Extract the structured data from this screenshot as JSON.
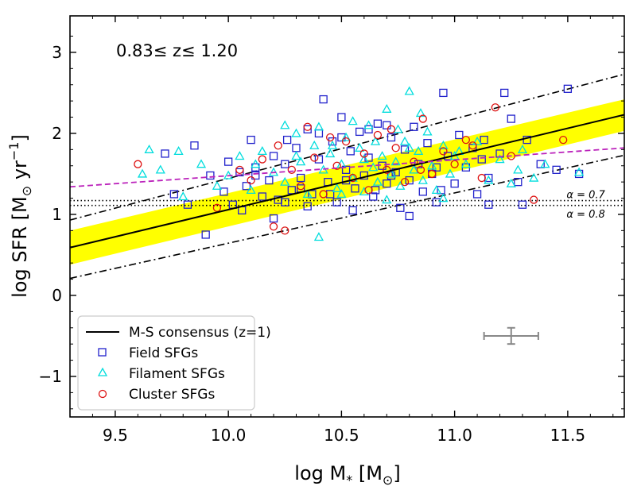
{
  "chart_data": {
    "type": "scatter",
    "title": "",
    "xlabel": "log M",
    "xlabel_sub": "*",
    "xlabel_unit": " [M",
    "xlabel_sun": "⊙",
    "xlabel_close": "]",
    "ylabel": "log SFR [M",
    "ylabel_sun": "⊙",
    "ylabel_unit": " yr",
    "ylabel_exp": "−1",
    "ylabel_close": "]",
    "xlim": [
      9.3,
      11.75
    ],
    "ylim": [
      -1.5,
      3.45
    ],
    "x_ticks": [
      9.5,
      10.0,
      10.5,
      11.0,
      11.5
    ],
    "x_tick_labels": [
      "9.5",
      "10.0",
      "10.5",
      "11.0",
      "11.5"
    ],
    "y_ticks": [
      -1,
      0,
      1,
      2,
      3
    ],
    "y_tick_labels": [
      "−1",
      "0",
      "1",
      "2",
      "3"
    ],
    "redshift_label": "0.83≤  z≤  1.20",
    "annotations": [
      {
        "text": "α = 0.7",
        "x": 11.58,
        "y": 1.24
      },
      {
        "text": "α = 0.8",
        "x": 11.58,
        "y": 1.0
      }
    ],
    "lines": {
      "ms_consensus": {
        "label": "M-S consensus (z=1)",
        "x": [
          9.3,
          11.75
        ],
        "y": [
          0.59,
          2.23
        ],
        "color": "#000000"
      },
      "ms_upper": {
        "x": [
          9.3,
          11.75
        ],
        "y": [
          0.93,
          2.73
        ],
        "color": "#000000"
      },
      "ms_lower": {
        "x": [
          9.3,
          11.75
        ],
        "y": [
          0.21,
          1.73
        ],
        "color": "#000000"
      },
      "band": {
        "x": [
          9.3,
          11.75
        ],
        "y_low": [
          0.38,
          2.03
        ],
        "y_high": [
          0.8,
          2.42
        ],
        "color": "#ffff00"
      },
      "fit_dashed": {
        "x": [
          9.3,
          11.75
        ],
        "y": [
          1.34,
          1.82
        ],
        "color": "#bb22bb"
      },
      "alpha_07": {
        "y": 1.17,
        "color": "#000000"
      },
      "alpha_08": {
        "y": 1.11,
        "color": "#000000"
      }
    },
    "error_bar": {
      "x": 11.25,
      "y": -0.5,
      "xerr": 0.12,
      "yerr": 0.1,
      "color": "#888888"
    },
    "legend": [
      {
        "key": "ms",
        "label": "M-S consensus (z=1)"
      },
      {
        "key": "field",
        "label": "Field SFGs"
      },
      {
        "key": "filament",
        "label": "Filament SFGs"
      },
      {
        "key": "cluster",
        "label": "Cluster SFGs"
      }
    ],
    "series": [
      {
        "name": "Field SFGs",
        "marker": "square",
        "color": "#2222cc",
        "points": [
          [
            9.72,
            1.75
          ],
          [
            9.76,
            1.25
          ],
          [
            9.85,
            1.85
          ],
          [
            9.92,
            1.48
          ],
          [
            9.98,
            1.28
          ],
          [
            10.0,
            1.65
          ],
          [
            10.02,
            1.12
          ],
          [
            10.05,
            1.52
          ],
          [
            10.08,
            1.35
          ],
          [
            10.12,
            1.58
          ],
          [
            10.15,
            1.22
          ],
          [
            10.18,
            1.42
          ],
          [
            10.2,
            1.72
          ],
          [
            10.22,
            1.18
          ],
          [
            10.25,
            1.62
          ],
          [
            10.28,
            1.3
          ],
          [
            10.3,
            1.82
          ],
          [
            10.32,
            1.45
          ],
          [
            10.35,
            2.05
          ],
          [
            10.37,
            1.25
          ],
          [
            10.4,
            1.68
          ],
          [
            10.42,
            2.42
          ],
          [
            10.44,
            1.4
          ],
          [
            10.46,
            1.9
          ],
          [
            10.48,
            1.15
          ],
          [
            10.5,
            2.2
          ],
          [
            10.52,
            1.55
          ],
          [
            10.54,
            1.78
          ],
          [
            10.56,
            1.32
          ],
          [
            10.58,
            2.02
          ],
          [
            10.6,
            1.48
          ],
          [
            10.62,
            1.7
          ],
          [
            10.64,
            1.22
          ],
          [
            10.66,
            2.12
          ],
          [
            10.68,
            1.6
          ],
          [
            10.7,
            1.38
          ],
          [
            10.72,
            1.95
          ],
          [
            10.74,
            1.52
          ],
          [
            10.76,
            1.08
          ],
          [
            10.78,
            1.8
          ],
          [
            10.8,
            1.42
          ],
          [
            10.82,
            2.08
          ],
          [
            10.84,
            1.62
          ],
          [
            10.86,
            1.28
          ],
          [
            10.88,
            1.88
          ],
          [
            10.9,
            1.5
          ],
          [
            10.92,
            1.15
          ],
          [
            10.95,
            2.5
          ],
          [
            10.97,
            1.72
          ],
          [
            11.0,
            1.38
          ],
          [
            11.02,
            1.98
          ],
          [
            11.05,
            1.58
          ],
          [
            11.08,
            1.82
          ],
          [
            11.1,
            1.25
          ],
          [
            11.13,
            1.92
          ],
          [
            11.15,
            1.45
          ],
          [
            11.2,
            1.75
          ],
          [
            11.22,
            2.5
          ],
          [
            11.25,
            2.18
          ],
          [
            11.28,
            1.4
          ],
          [
            11.32,
            1.92
          ],
          [
            11.38,
            1.62
          ],
          [
            11.45,
            1.55
          ],
          [
            11.5,
            2.55
          ],
          [
            11.55,
            1.5
          ],
          [
            9.82,
            1.12
          ],
          [
            9.9,
            0.75
          ],
          [
            10.06,
            1.05
          ],
          [
            10.2,
            0.95
          ],
          [
            10.35,
            1.1
          ],
          [
            10.55,
            1.05
          ],
          [
            10.8,
            0.98
          ],
          [
            11.15,
            1.12
          ],
          [
            11.3,
            1.12
          ],
          [
            10.1,
            1.92
          ],
          [
            10.26,
            1.92
          ],
          [
            10.4,
            2.0
          ],
          [
            10.5,
            1.95
          ],
          [
            10.62,
            2.05
          ],
          [
            10.7,
            2.1
          ],
          [
            10.94,
            1.3
          ],
          [
            10.12,
            1.48
          ],
          [
            10.32,
            1.32
          ],
          [
            10.52,
            1.42
          ],
          [
            10.72,
            1.48
          ],
          [
            10.92,
            1.58
          ],
          [
            11.12,
            1.68
          ],
          [
            10.25,
            1.15
          ],
          [
            10.45,
            1.25
          ],
          [
            10.65,
            1.3
          ]
        ]
      },
      {
        "name": "Filament SFGs",
        "marker": "triangle",
        "color": "#00dddd",
        "points": [
          [
            9.62,
            1.5
          ],
          [
            9.65,
            1.8
          ],
          [
            9.7,
            1.55
          ],
          [
            9.78,
            1.78
          ],
          [
            9.8,
            1.22
          ],
          [
            9.88,
            1.62
          ],
          [
            9.95,
            1.35
          ],
          [
            10.0,
            1.48
          ],
          [
            10.05,
            1.72
          ],
          [
            10.1,
            1.3
          ],
          [
            10.15,
            1.78
          ],
          [
            10.2,
            1.52
          ],
          [
            10.25,
            1.4
          ],
          [
            10.3,
            2.0
          ],
          [
            10.32,
            1.65
          ],
          [
            10.35,
            1.25
          ],
          [
            10.38,
            1.85
          ],
          [
            10.4,
            0.72
          ],
          [
            10.42,
            1.55
          ],
          [
            10.45,
            1.75
          ],
          [
            10.48,
            1.32
          ],
          [
            10.5,
            1.62
          ],
          [
            10.52,
            1.95
          ],
          [
            10.55,
            1.45
          ],
          [
            10.58,
            1.82
          ],
          [
            10.6,
            1.28
          ],
          [
            10.62,
            2.1
          ],
          [
            10.64,
            1.58
          ],
          [
            10.66,
            1.4
          ],
          [
            10.68,
            1.72
          ],
          [
            10.7,
            2.3
          ],
          [
            10.72,
            1.5
          ],
          [
            10.74,
            1.65
          ],
          [
            10.76,
            1.35
          ],
          [
            10.78,
            1.9
          ],
          [
            10.8,
            2.52
          ],
          [
            10.82,
            1.55
          ],
          [
            10.84,
            1.78
          ],
          [
            10.86,
            1.42
          ],
          [
            10.88,
            2.02
          ],
          [
            10.9,
            1.6
          ],
          [
            10.92,
            1.3
          ],
          [
            10.95,
            1.85
          ],
          [
            10.98,
            1.5
          ],
          [
            11.0,
            1.72
          ],
          [
            11.05,
            1.62
          ],
          [
            11.1,
            1.9
          ],
          [
            11.15,
            1.42
          ],
          [
            11.2,
            1.68
          ],
          [
            11.25,
            1.38
          ],
          [
            11.28,
            1.55
          ],
          [
            11.3,
            1.8
          ],
          [
            11.35,
            1.45
          ],
          [
            11.4,
            1.62
          ],
          [
            11.55,
            1.52
          ],
          [
            10.4,
            2.08
          ],
          [
            10.55,
            2.15
          ],
          [
            10.65,
            1.9
          ],
          [
            10.75,
            2.05
          ],
          [
            10.85,
            2.25
          ],
          [
            10.25,
            2.1
          ],
          [
            10.5,
            1.25
          ],
          [
            10.7,
            1.18
          ],
          [
            10.95,
            1.2
          ],
          [
            10.12,
            1.62
          ],
          [
            10.3,
            1.72
          ],
          [
            10.46,
            1.85
          ],
          [
            10.6,
            1.68
          ],
          [
            10.8,
            1.82
          ],
          [
            11.02,
            1.78
          ]
        ]
      },
      {
        "name": "Cluster SFGs",
        "marker": "circle",
        "color": "#dd1111",
        "points": [
          [
            9.6,
            1.62
          ],
          [
            9.95,
            1.08
          ],
          [
            10.1,
            1.42
          ],
          [
            10.15,
            1.68
          ],
          [
            10.22,
            1.85
          ],
          [
            10.25,
            0.8
          ],
          [
            10.28,
            1.55
          ],
          [
            10.32,
            1.35
          ],
          [
            10.38,
            1.7
          ],
          [
            10.42,
            1.25
          ],
          [
            10.48,
            1.6
          ],
          [
            10.52,
            1.9
          ],
          [
            10.55,
            1.45
          ],
          [
            10.6,
            1.75
          ],
          [
            10.62,
            1.3
          ],
          [
            10.66,
            1.98
          ],
          [
            10.7,
            1.55
          ],
          [
            10.74,
            1.82
          ],
          [
            10.78,
            1.4
          ],
          [
            10.82,
            1.65
          ],
          [
            10.86,
            2.18
          ],
          [
            10.9,
            1.5
          ],
          [
            10.95,
            1.78
          ],
          [
            11.0,
            1.62
          ],
          [
            11.08,
            1.85
          ],
          [
            11.12,
            1.45
          ],
          [
            11.18,
            2.32
          ],
          [
            11.25,
            1.72
          ],
          [
            11.35,
            1.18
          ],
          [
            11.48,
            1.92
          ],
          [
            10.35,
            2.08
          ],
          [
            10.72,
            2.05
          ],
          [
            10.45,
            1.95
          ],
          [
            10.05,
            1.55
          ],
          [
            10.2,
            0.85
          ],
          [
            10.85,
            1.55
          ],
          [
            11.05,
            1.92
          ]
        ]
      }
    ],
    "legend_position": "lower-left"
  }
}
